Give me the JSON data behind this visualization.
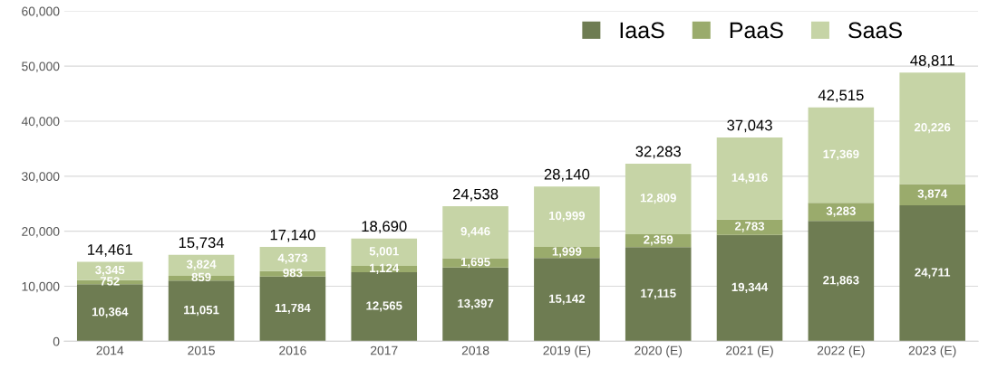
{
  "chart_data": {
    "type": "bar",
    "stacked": true,
    "categories": [
      "2014",
      "2015",
      "2016",
      "2017",
      "2018",
      "2019 (E)",
      "2020 (E)",
      "2021 (E)",
      "2022 (E)",
      "2023 (E)"
    ],
    "series": [
      {
        "name": "IaaS",
        "color": "#6e7c52",
        "values": [
          10364,
          11051,
          11784,
          12565,
          13397,
          15142,
          17115,
          19344,
          21863,
          24711
        ],
        "value_labels": [
          "10,364",
          "11,051",
          "11,784",
          "12,565",
          "13,397",
          "15,142",
          "17,115",
          "19,344",
          "21,863",
          "24,711"
        ]
      },
      {
        "name": "PaaS",
        "color": "#9aab6c",
        "values": [
          752,
          859,
          983,
          1124,
          1695,
          1999,
          2359,
          2783,
          3283,
          3874
        ],
        "value_labels": [
          "752",
          "859",
          "983",
          "1,124",
          "1,695",
          "1,999",
          "2,359",
          "2,783",
          "3,283",
          "3,874"
        ]
      },
      {
        "name": "SaaS",
        "color": "#c6d4a6",
        "values": [
          3345,
          3824,
          4373,
          5001,
          9446,
          10999,
          12809,
          14916,
          17369,
          20226
        ],
        "value_labels": [
          "3,345",
          "3,824",
          "4,373",
          "5,001",
          "9,446",
          "10,999",
          "12,809",
          "14,916",
          "17,369",
          "20,226"
        ]
      }
    ],
    "totals": [
      "14,461",
      "15,734",
      "17,140",
      "18,690",
      "24,538",
      "28,140",
      "32,283",
      "37,043",
      "42,515",
      "48,811"
    ],
    "ylim": [
      0,
      60000
    ],
    "yticks": [
      0,
      {
        "value": 10000,
        "label": "10,000"
      },
      {
        "value": 20000,
        "label": "20,000"
      },
      {
        "value": 30000,
        "label": "30,000"
      },
      {
        "value": 40000,
        "label": "40,000"
      },
      {
        "value": 50000,
        "label": "50,000"
      },
      {
        "value": 60000,
        "label": "60,000"
      }
    ],
    "grid": "y",
    "legend": "top right"
  }
}
